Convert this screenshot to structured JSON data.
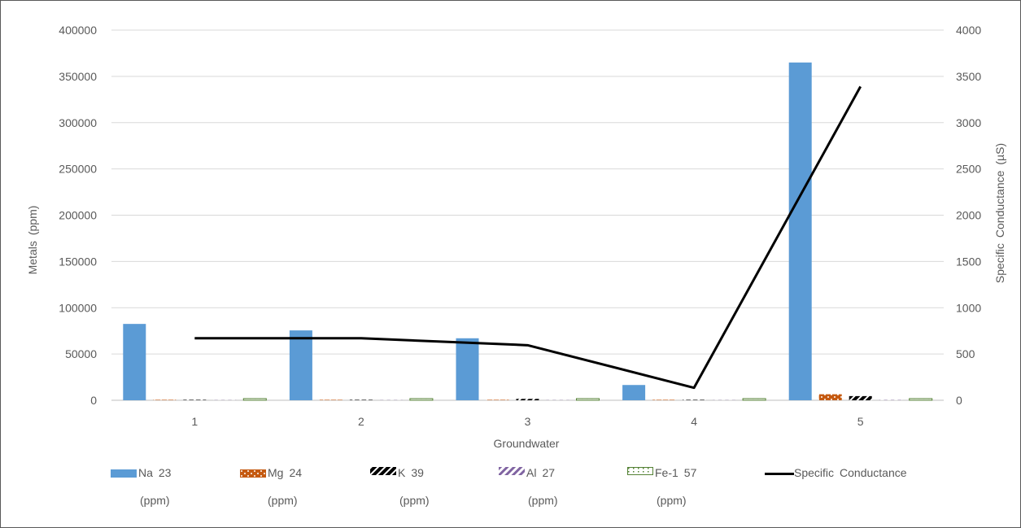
{
  "chart_data": {
    "type": "bar",
    "xlabel": "Groundwater",
    "ylabel": "Metals (ppm)",
    "y2label": "Specific Conductance (µS)",
    "categories": [
      "1",
      "2",
      "3",
      "4",
      "5"
    ],
    "ylim": [
      0,
      400000
    ],
    "y2lim": [
      0,
      4000
    ],
    "yticks": [
      "0",
      "50000",
      "100000",
      "150000",
      "200000",
      "250000",
      "300000",
      "350000",
      "400000"
    ],
    "y2ticks": [
      "0",
      "500",
      "1000",
      "1500",
      "2000",
      "2500",
      "3000",
      "3500",
      "4000"
    ],
    "grid": true,
    "legend_position": "bottom",
    "series": [
      {
        "name": "Na 23",
        "unit": "(ppm)",
        "values": [
          82500,
          75500,
          67000,
          16500,
          365000
        ],
        "color": "#5b9bd5",
        "pattern": "solid"
      },
      {
        "name": "Mg 24",
        "unit": "(ppm)",
        "values": [
          500,
          500,
          500,
          500,
          6500
        ],
        "color": "#c55a11",
        "pattern": "dots"
      },
      {
        "name": "K 39",
        "unit": "(ppm)",
        "values": [
          500,
          500,
          1500,
          500,
          4500
        ],
        "color": "#000000",
        "pattern": "diagonal-black"
      },
      {
        "name": "Al 27",
        "unit": "(ppm)",
        "values": [
          200,
          200,
          200,
          200,
          300
        ],
        "color": "#8064a2",
        "pattern": "diagonal-purple"
      },
      {
        "name": "Fe-1 57",
        "unit": "(ppm)",
        "values": [
          1800,
          1800,
          1800,
          1800,
          1800
        ],
        "color": "#548235",
        "pattern": "outline-dots"
      }
    ],
    "line_series": {
      "name": "Specific Conductance",
      "axis": "right",
      "values": [
        670,
        670,
        595,
        135,
        3390
      ],
      "color": "#000000"
    }
  }
}
